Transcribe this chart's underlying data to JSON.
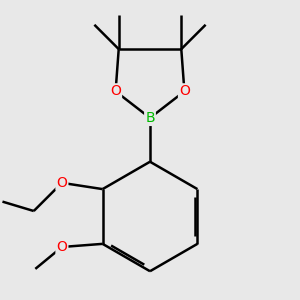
{
  "background_color": "#e8e8e8",
  "bond_color": "#000000",
  "bond_width": 1.8,
  "atom_colors": {
    "B": "#00bb00",
    "O": "#ff0000",
    "C": "#000000"
  },
  "figsize": [
    3.0,
    3.0
  ],
  "dpi": 100
}
